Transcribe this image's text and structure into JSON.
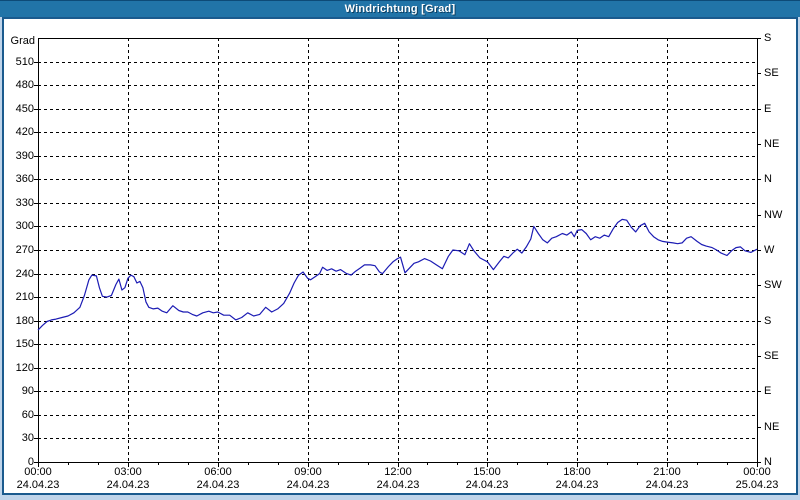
{
  "window": {
    "title": "Windrichtung [Grad]"
  },
  "colors": {
    "titlebar_bg": "#2174a8",
    "titlebar_text": "#ffffff",
    "frame_bg": "#bfd4ea",
    "panel_border": "#1a5a8e",
    "panel_bg": "#ffffff",
    "grid": "#000000",
    "axis": "#000000",
    "tick_label": "#000000",
    "series_line": "#1c1cb4"
  },
  "chart_data": {
    "type": "line",
    "title": "Windrichtung [Grad]",
    "ylabel": "Grad",
    "x_unit": "hours",
    "xlim_hours": [
      0,
      24
    ],
    "ylim": [
      0,
      540
    ],
    "grid": "dashed",
    "legend": "none",
    "y_left_ticks": [
      0,
      30,
      60,
      90,
      120,
      150,
      180,
      210,
      240,
      270,
      300,
      330,
      360,
      390,
      420,
      450,
      480,
      510
    ],
    "y_right_ticks": [
      {
        "value": 0,
        "label": "N"
      },
      {
        "value": 45,
        "label": "NE"
      },
      {
        "value": 90,
        "label": "E"
      },
      {
        "value": 135,
        "label": "SE"
      },
      {
        "value": 180,
        "label": "S"
      },
      {
        "value": 225,
        "label": "SW"
      },
      {
        "value": 270,
        "label": "W"
      },
      {
        "value": 315,
        "label": "NW"
      },
      {
        "value": 360,
        "label": "N"
      },
      {
        "value": 405,
        "label": "NE"
      },
      {
        "value": 450,
        "label": "E"
      },
      {
        "value": 495,
        "label": "SE"
      },
      {
        "value": 540,
        "label": "S"
      }
    ],
    "x_ticks": [
      {
        "hour": 0,
        "time": "00:00",
        "date": "24.04.23"
      },
      {
        "hour": 3,
        "time": "03:00",
        "date": "24.04.23"
      },
      {
        "hour": 6,
        "time": "06:00",
        "date": "24.04.23"
      },
      {
        "hour": 9,
        "time": "09:00",
        "date": "24.04.23"
      },
      {
        "hour": 12,
        "time": "12:00",
        "date": "24.04.23"
      },
      {
        "hour": 15,
        "time": "15:00",
        "date": "24.04.23"
      },
      {
        "hour": 18,
        "time": "18:00",
        "date": "24.04.23"
      },
      {
        "hour": 21,
        "time": "21:00",
        "date": "24.04.23"
      },
      {
        "hour": 24,
        "time": "00:00",
        "date": "25.04.23"
      }
    ],
    "x_minor_tick_hours": 1,
    "series": [
      {
        "name": "Windrichtung",
        "color": "#1c1cb4",
        "points": [
          [
            0.0,
            168
          ],
          [
            0.15,
            174
          ],
          [
            0.3,
            179
          ],
          [
            0.45,
            181
          ],
          [
            0.6,
            182
          ],
          [
            0.8,
            184
          ],
          [
            1.0,
            186
          ],
          [
            1.2,
            190
          ],
          [
            1.4,
            197
          ],
          [
            1.55,
            212
          ],
          [
            1.7,
            232
          ],
          [
            1.8,
            238
          ],
          [
            1.95,
            237
          ],
          [
            2.05,
            222
          ],
          [
            2.15,
            211
          ],
          [
            2.3,
            210
          ],
          [
            2.45,
            212
          ],
          [
            2.6,
            226
          ],
          [
            2.7,
            233
          ],
          [
            2.8,
            219
          ],
          [
            2.9,
            222
          ],
          [
            3.0,
            234
          ],
          [
            3.1,
            238
          ],
          [
            3.2,
            236
          ],
          [
            3.3,
            228
          ],
          [
            3.4,
            230
          ],
          [
            3.5,
            222
          ],
          [
            3.6,
            204
          ],
          [
            3.7,
            197
          ],
          [
            3.85,
            195
          ],
          [
            4.0,
            196
          ],
          [
            4.15,
            192
          ],
          [
            4.3,
            190
          ],
          [
            4.5,
            199
          ],
          [
            4.7,
            193
          ],
          [
            4.85,
            191
          ],
          [
            5.0,
            191
          ],
          [
            5.15,
            188
          ],
          [
            5.3,
            186
          ],
          [
            5.5,
            190
          ],
          [
            5.7,
            192
          ],
          [
            5.85,
            190
          ],
          [
            6.0,
            191
          ],
          [
            6.2,
            187
          ],
          [
            6.4,
            187
          ],
          [
            6.6,
            181
          ],
          [
            6.8,
            184
          ],
          [
            7.0,
            190
          ],
          [
            7.2,
            186
          ],
          [
            7.4,
            188
          ],
          [
            7.6,
            197
          ],
          [
            7.8,
            191
          ],
          [
            8.0,
            195
          ],
          [
            8.2,
            202
          ],
          [
            8.4,
            215
          ],
          [
            8.55,
            228
          ],
          [
            8.7,
            238
          ],
          [
            8.85,
            242
          ],
          [
            9.0,
            234
          ],
          [
            9.1,
            232
          ],
          [
            9.25,
            236
          ],
          [
            9.4,
            240
          ],
          [
            9.5,
            248
          ],
          [
            9.65,
            244
          ],
          [
            9.8,
            246
          ],
          [
            9.95,
            243
          ],
          [
            10.1,
            245
          ],
          [
            10.3,
            240
          ],
          [
            10.45,
            238
          ],
          [
            10.6,
            243
          ],
          [
            10.75,
            247
          ],
          [
            10.9,
            251
          ],
          [
            11.1,
            251
          ],
          [
            11.25,
            250
          ],
          [
            11.4,
            242
          ],
          [
            11.5,
            240
          ],
          [
            11.7,
            249
          ],
          [
            11.85,
            255
          ],
          [
            12.0,
            259
          ],
          [
            12.1,
            261
          ],
          [
            12.25,
            241
          ],
          [
            12.4,
            247
          ],
          [
            12.55,
            253
          ],
          [
            12.7,
            255
          ],
          [
            12.9,
            259
          ],
          [
            13.1,
            256
          ],
          [
            13.3,
            251
          ],
          [
            13.5,
            246
          ],
          [
            13.7,
            262
          ],
          [
            13.85,
            270
          ],
          [
            14.05,
            269
          ],
          [
            14.25,
            264
          ],
          [
            14.4,
            278
          ],
          [
            14.55,
            269
          ],
          [
            14.75,
            260
          ],
          [
            15.0,
            255
          ],
          [
            15.2,
            245
          ],
          [
            15.4,
            255
          ],
          [
            15.55,
            262
          ],
          [
            15.7,
            260
          ],
          [
            15.85,
            266
          ],
          [
            16.0,
            271
          ],
          [
            16.15,
            266
          ],
          [
            16.3,
            274
          ],
          [
            16.45,
            284
          ],
          [
            16.55,
            300
          ],
          [
            16.7,
            291
          ],
          [
            16.85,
            283
          ],
          [
            17.0,
            279
          ],
          [
            17.15,
            285
          ],
          [
            17.3,
            287
          ],
          [
            17.5,
            291
          ],
          [
            17.65,
            289
          ],
          [
            17.8,
            293
          ],
          [
            17.9,
            287
          ],
          [
            18.0,
            295
          ],
          [
            18.15,
            296
          ],
          [
            18.3,
            291
          ],
          [
            18.45,
            283
          ],
          [
            18.6,
            287
          ],
          [
            18.75,
            285
          ],
          [
            18.9,
            289
          ],
          [
            19.05,
            287
          ],
          [
            19.2,
            297
          ],
          [
            19.35,
            305
          ],
          [
            19.5,
            309
          ],
          [
            19.65,
            308
          ],
          [
            19.8,
            299
          ],
          [
            19.95,
            293
          ],
          [
            20.1,
            301
          ],
          [
            20.25,
            304
          ],
          [
            20.4,
            293
          ],
          [
            20.55,
            287
          ],
          [
            20.7,
            283
          ],
          [
            20.85,
            281
          ],
          [
            21.0,
            280
          ],
          [
            21.2,
            279
          ],
          [
            21.35,
            278
          ],
          [
            21.5,
            279
          ],
          [
            21.65,
            285
          ],
          [
            21.8,
            287
          ],
          [
            22.0,
            281
          ],
          [
            22.15,
            277
          ],
          [
            22.3,
            275
          ],
          [
            22.5,
            273
          ],
          [
            22.65,
            270
          ],
          [
            22.8,
            266
          ],
          [
            23.0,
            263
          ],
          [
            23.15,
            269
          ],
          [
            23.3,
            273
          ],
          [
            23.45,
            274
          ],
          [
            23.6,
            269
          ],
          [
            23.8,
            267
          ],
          [
            24.0,
            271
          ]
        ]
      }
    ]
  }
}
